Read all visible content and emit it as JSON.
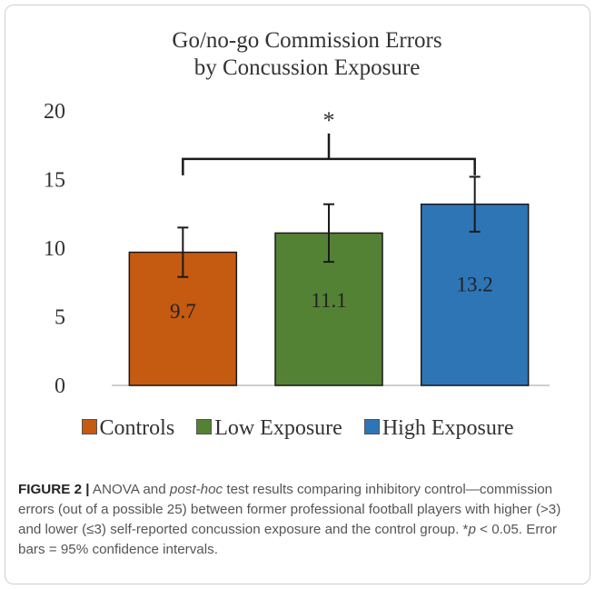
{
  "chart_data": {
    "type": "bar",
    "title_lines": [
      "Go/no-go Commission Errors",
      "by Concussion Exposure"
    ],
    "categories": [
      "Controls",
      "Low Exposure",
      "High Exposure"
    ],
    "values": [
      9.7,
      11.1,
      13.2
    ],
    "value_labels": [
      "9.7",
      "11.1",
      "13.2"
    ],
    "error_bars": [
      {
        "low": 7.9,
        "high": 11.5
      },
      {
        "low": 9.0,
        "high": 13.2
      },
      {
        "low": 11.2,
        "high": 15.2
      }
    ],
    "colors": [
      "#c55a11",
      "#548235",
      "#2e75b6"
    ],
    "ylim": [
      0,
      20
    ],
    "yticks": [
      "0",
      "5",
      "10",
      "15",
      "20"
    ],
    "grid": false,
    "significance": {
      "label": "*",
      "bracket_y": 16.5
    },
    "legend_position": "bottom"
  },
  "legend": {
    "items": [
      "Controls",
      "Low Exposure",
      "High Exposure"
    ]
  },
  "caption": {
    "label": "FIGURE 2 |",
    "text_1": " ANOVA and ",
    "text_italic": "post-hoc",
    "text_2": " test results comparing inhibitory control—commission errors (out of a possible 25) between former professional football players with higher (>3) and lower (≤3) self-reported concussion exposure and the control group. *",
    "text_p": "p",
    "text_3": " < 0.05. Error bars = 95% confidence intervals."
  }
}
